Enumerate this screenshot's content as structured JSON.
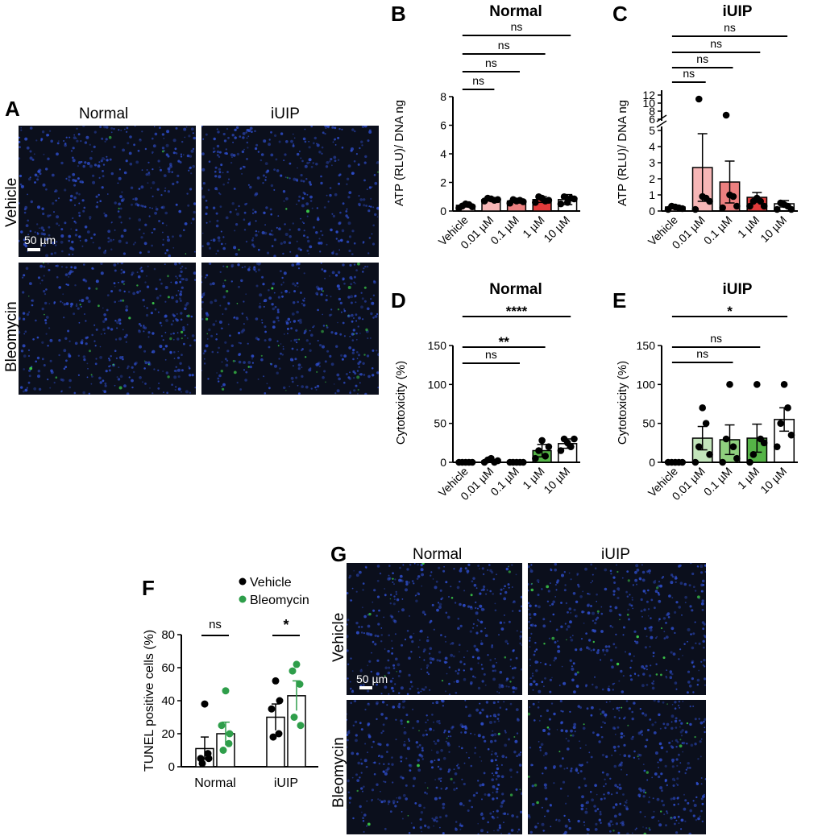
{
  "panel_letters": {
    "A": "A",
    "B": "B",
    "C": "C",
    "D": "D",
    "E": "E",
    "F": "F",
    "G": "G"
  },
  "panel_A": {
    "col_titles": [
      "Normal",
      "iUIP"
    ],
    "row_titles": [
      "Vehicle",
      "Bleomycin"
    ],
    "scale_bar": "50 µm"
  },
  "panel_G": {
    "col_titles": [
      "Normal",
      "iUIP"
    ],
    "row_titles": [
      "Vehicle",
      "Bleomycin"
    ],
    "scale_bar": "50 µm"
  },
  "colors": {
    "blue_nuclei": "#2f4fd0",
    "green_tunel": "#3ccf4a",
    "background": "#0b0f1c",
    "red_bars": [
      "#fde2e2",
      "#f6b6b6",
      "#ec8080",
      "#e03b3b"
    ],
    "green_bars": [
      "#e3f3e0",
      "#c3e5bb",
      "#8fd07e",
      "#55b447"
    ],
    "green_dots": "#2e9e4a"
  },
  "chart_data": [
    {
      "id": "B",
      "type": "bar",
      "title": "Normal",
      "ylabel": "ATP (RLU)/ DNA ng",
      "ylim": [
        0,
        8
      ],
      "yticks": [
        "0",
        "2",
        "4",
        "6",
        "8"
      ],
      "categories": [
        "Vehicle",
        "0.01 µM",
        "0.1 µM",
        "1 µM",
        "10 µM"
      ],
      "values": [
        0.4,
        0.8,
        0.7,
        0.8,
        0.8
      ],
      "errors": [
        0.12,
        0.1,
        0.1,
        0.2,
        0.35
      ],
      "points": [
        [
          0.2,
          0.35,
          0.5,
          0.45,
          0.3
        ],
        [
          0.7,
          0.9,
          0.85,
          0.75,
          0.8
        ],
        [
          0.55,
          0.8,
          0.7,
          0.75,
          0.65
        ],
        [
          0.6,
          1.0,
          0.9,
          0.7,
          0.75
        ],
        [
          0.5,
          1.0,
          0.6,
          0.9,
          0.85
        ]
      ],
      "comparisons": [
        "ns",
        "ns",
        "ns",
        "ns"
      ]
    },
    {
      "id": "C",
      "type": "bar",
      "title": "iUIP",
      "ylabel": "ATP (RLU)/ DNA ng",
      "broken_axis": true,
      "yticks_lower": [
        "0",
        "1",
        "2",
        "3",
        "4",
        "5"
      ],
      "yticks_upper": [
        "6",
        "8",
        "10",
        "12"
      ],
      "categories": [
        "Vehicle",
        "0.01 µM",
        "0.1 µM",
        "1 µM",
        "10 µM"
      ],
      "values": [
        0.25,
        2.7,
        1.8,
        0.85,
        0.45
      ],
      "errors": [
        0.08,
        2.1,
        1.3,
        0.3,
        0.2
      ],
      "points": [
        [
          0.1,
          0.3,
          0.25,
          0.2,
          0.15
        ],
        [
          0.1,
          11,
          0.9,
          0.8,
          0.6
        ],
        [
          0.2,
          7,
          1.0,
          0.9,
          0.3
        ],
        [
          0.3,
          0.6,
          0.8,
          0.6,
          0.3
        ],
        [
          0.1,
          0.5,
          0.4,
          0.3,
          0.1
        ]
      ],
      "comparisons": [
        "ns",
        "ns",
        "ns",
        "ns"
      ]
    },
    {
      "id": "D",
      "type": "bar",
      "title": "Normal",
      "ylabel": "Cytotoxicity (%)",
      "ylim": [
        0,
        150
      ],
      "yticks": [
        "0",
        "50",
        "100",
        "150"
      ],
      "categories": [
        "Vehicle",
        "0.01 µM",
        "0.1 µM",
        "1 µM",
        "10 µM"
      ],
      "values": [
        0,
        2,
        0,
        15,
        24
      ],
      "errors": [
        0,
        1,
        0,
        8,
        6
      ],
      "points": [
        [
          0,
          0,
          0,
          0,
          0
        ],
        [
          0,
          3,
          5,
          0,
          2
        ],
        [
          0,
          0,
          0,
          0,
          0
        ],
        [
          5,
          15,
          28,
          8,
          20
        ],
        [
          15,
          30,
          25,
          20,
          30
        ]
      ],
      "comparisons": [
        "ns",
        "**",
        "****"
      ]
    },
    {
      "id": "E",
      "type": "bar",
      "title": "iUIP",
      "ylabel": "Cytotoxicity (%)",
      "ylim": [
        0,
        150
      ],
      "yticks": [
        "0",
        "50",
        "100",
        "150"
      ],
      "categories": [
        "Vehicle",
        "0.01 µM",
        "0.1 µM",
        "1 µM",
        "10 µM"
      ],
      "values": [
        0,
        31,
        29,
        31,
        55
      ],
      "errors": [
        0,
        15,
        19,
        18,
        15
      ],
      "points": [
        [
          0,
          0,
          0,
          0,
          0
        ],
        [
          0,
          20,
          70,
          50,
          10
        ],
        [
          0,
          30,
          100,
          20,
          5
        ],
        [
          0,
          10,
          100,
          30,
          25
        ],
        [
          20,
          50,
          100,
          70,
          35
        ]
      ],
      "comparisons": [
        "ns",
        "ns",
        "*"
      ]
    },
    {
      "id": "F",
      "type": "bar",
      "ylabel": "TUNEL positive cells (%)",
      "ylim": [
        0,
        80
      ],
      "yticks": [
        "0",
        "20",
        "40",
        "60",
        "80"
      ],
      "categories": [
        "Normal",
        "iUIP"
      ],
      "series": [
        {
          "name": "Vehicle",
          "values": [
            11,
            30
          ],
          "errors": [
            7,
            8
          ],
          "points": [
            [
              38,
              5,
              8,
              2,
              5
            ],
            [
              52,
              35,
              20,
              18,
              40
            ]
          ]
        },
        {
          "name": "Bleomycin",
          "values": [
            20,
            43
          ],
          "errors": [
            7,
            9
          ],
          "points": [
            [
              46,
              25,
              14,
              10,
              20
            ],
            [
              62,
              58,
              50,
              30,
              25
            ]
          ]
        }
      ],
      "comparisons": [
        "ns",
        "*"
      ]
    }
  ]
}
